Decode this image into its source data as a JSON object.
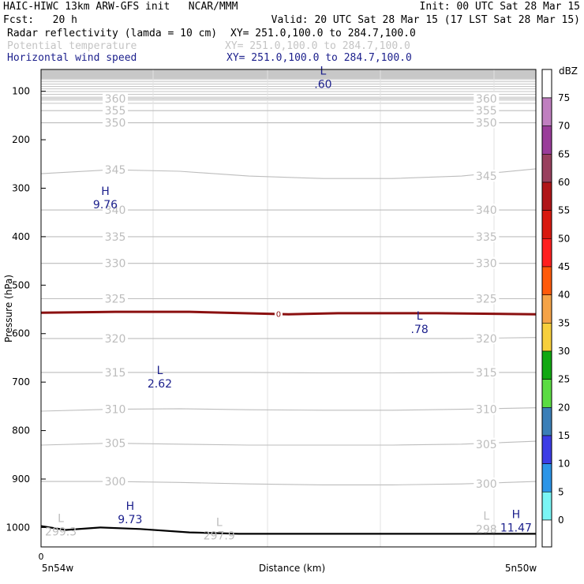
{
  "header": {
    "line1_left": "HAIC-HIWC 13km ARW-GFS init   NCAR/MMM",
    "line1_right": "Init: 00 UTC Sat 28 Mar 15",
    "line2_left": "Fcst:   20 h",
    "line2_right": "Valid: 20 UTC Sat 28 Mar 15 (17 LST Sat 28 Mar 15)",
    "fields": [
      {
        "name": "Radar reflectivity (lamda = 10 cm)",
        "xy": "XY= 251.0,100.0 to 284.7,100.0",
        "color": "#000000"
      },
      {
        "name": "Potential temperature",
        "xy": "XY= 251.0,100.0 to 284.7,100.0",
        "color": "#c4c4c4"
      },
      {
        "name": "Horizontal wind speed",
        "xy": "XY= 251.0,100.0 to 284.7,100.0",
        "color": "#1b1f8c"
      }
    ]
  },
  "chart_data": {
    "type": "cross-section",
    "xlabel": "Distance (km)",
    "ylabel": "Pressure (hPa)",
    "ylim": [
      1040,
      55
    ],
    "xlim": [
      0,
      100
    ],
    "yticks": [
      100,
      200,
      300,
      400,
      500,
      600,
      700,
      800,
      900,
      1000
    ],
    "xtick_label": "0",
    "x_left_label": "5n54w",
    "x_right_label": "5n50w",
    "colorbar": {
      "unit": "dBZ",
      "levels": [
        "75",
        "70",
        "65",
        "60",
        "55",
        "50",
        "45",
        "40",
        "35",
        "30",
        "25",
        "20",
        "15",
        "10",
        "5",
        "0"
      ],
      "colors": [
        "#c07fc0",
        "#9a3d9a",
        "#99405e",
        "#b01518",
        "#d8190f",
        "#ff1f1f",
        "#ff5a0a",
        "#f5a347",
        "#f7cf3c",
        "#11a811",
        "#5bdc43",
        "#3b7fb8",
        "#3c3ce6",
        "#2c95e8",
        "#7af5f5",
        "#ffffff"
      ]
    },
    "theta_isentropes": [
      {
        "value": 300,
        "p": [
          905,
          905,
          907,
          910,
          912,
          912,
          910,
          905
        ]
      },
      {
        "value": 305,
        "p": [
          830,
          826,
          828,
          830,
          830,
          830,
          828,
          822
        ]
      },
      {
        "value": 310,
        "p": [
          760,
          756,
          755,
          757,
          758,
          758,
          756,
          753
        ]
      },
      {
        "value": 315,
        "p": [
          680,
          680,
          680,
          680,
          681,
          681,
          680,
          680
        ]
      },
      {
        "value": 320,
        "p": [
          610,
          610,
          610,
          610,
          610,
          610,
          610,
          608
        ]
      },
      {
        "value": 325,
        "p": [
          528,
          528,
          528,
          528,
          528,
          528,
          528,
          528
        ]
      },
      {
        "value": 330,
        "p": [
          455,
          455,
          455,
          455,
          455,
          455,
          455,
          455
        ]
      },
      {
        "value": 335,
        "p": [
          400,
          400,
          400,
          400,
          400,
          400,
          400,
          400
        ]
      },
      {
        "value": 340,
        "p": [
          345,
          345,
          345,
          345,
          345,
          345,
          345,
          345
        ]
      },
      {
        "value": 345,
        "p": [
          270,
          262,
          265,
          275,
          280,
          280,
          275,
          260
        ]
      },
      {
        "value": 350,
        "p": [
          165,
          165,
          165,
          165,
          165,
          165,
          165,
          165
        ]
      },
      {
        "value": 355,
        "p": [
          140,
          140,
          140,
          140,
          140,
          140,
          140,
          140
        ]
      },
      {
        "value": 360,
        "p": [
          115,
          115,
          115,
          115,
          115,
          115,
          115,
          115
        ]
      }
    ],
    "isentrope_label_x": [
      15,
      90
    ],
    "freezing_level": {
      "value": "0",
      "x": [
        0,
        15,
        30,
        50,
        60,
        80,
        100
      ],
      "p": [
        557,
        555,
        555,
        560,
        558,
        558,
        560
      ]
    },
    "terrain": {
      "x": [
        0,
        5,
        12,
        20,
        30,
        40,
        100
      ],
      "p": [
        997,
        1005,
        1000,
        1003,
        1010,
        1013,
        1013
      ]
    },
    "extrema": [
      {
        "kind": "L",
        "value": ".60",
        "x": 57,
        "p": 72,
        "field": "wind"
      },
      {
        "kind": "H",
        "value": "9.76",
        "x": 13,
        "p": 320,
        "field": "wind"
      },
      {
        "kind": "L",
        "value": ".78",
        "x": 76.5,
        "p": 578,
        "field": "wind"
      },
      {
        "kind": "L",
        "value": "2.62",
        "x": 24,
        "p": 690,
        "field": "wind"
      },
      {
        "kind": "H",
        "value": "9.73",
        "x": 18,
        "p": 970,
        "field": "wind"
      },
      {
        "kind": "H",
        "value": "11.47",
        "x": 96,
        "p": 987,
        "field": "wind"
      },
      {
        "kind": "L",
        "value": "299.3",
        "x": 4,
        "p": 995,
        "field": "theta"
      },
      {
        "kind": "L",
        "value": "297.9",
        "x": 36,
        "p": 1003,
        "field": "theta"
      },
      {
        "kind": "L",
        "value": "298",
        "x": 90,
        "p": 990,
        "field": "theta"
      }
    ]
  }
}
